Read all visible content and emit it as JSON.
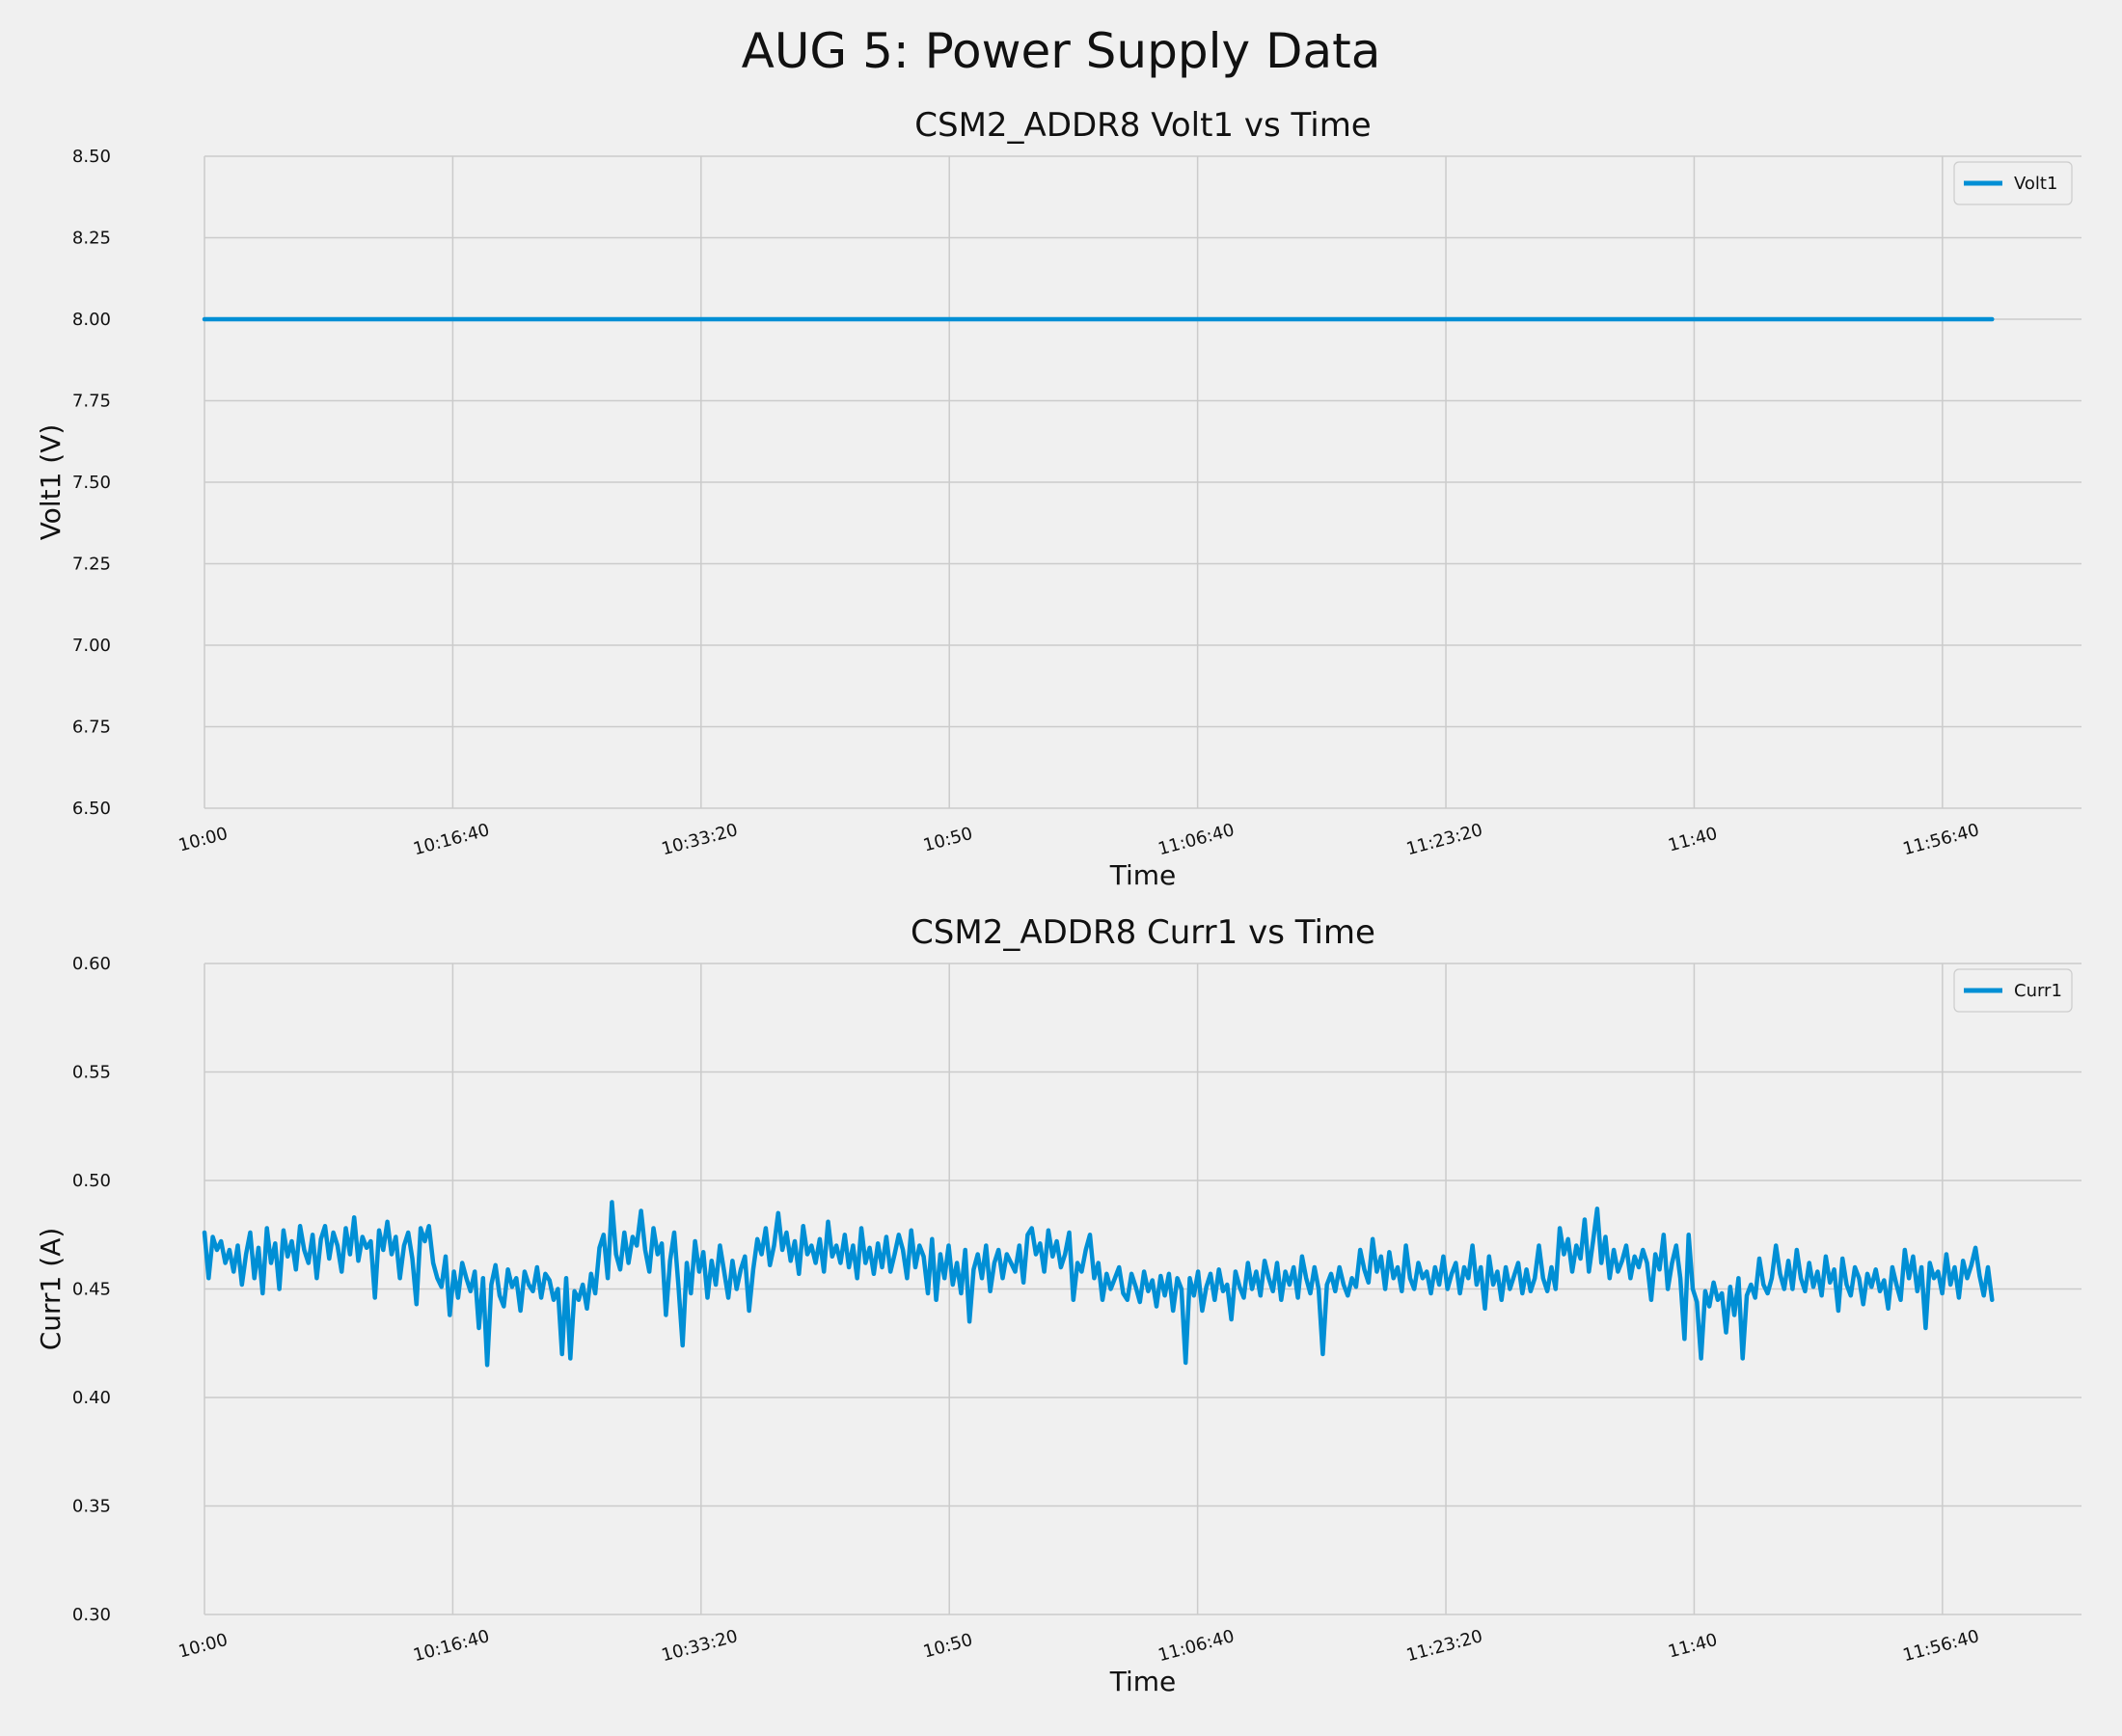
{
  "suptitle": "AUG 5: Power Supply Data",
  "colors": {
    "background": "#f0f0f0",
    "grid": "#cbcbcb",
    "line": "#008fd5",
    "text": "#111111"
  },
  "chart_data": [
    {
      "type": "line",
      "title": "CSM2_ADDR8 Volt1 vs Time",
      "xlabel": "Time",
      "ylabel": "Volt1 (V)",
      "xlim": [
        "10:00:00",
        "12:06:00"
      ],
      "ylim": [
        6.5,
        8.5
      ],
      "x_ticks": [
        "10:00",
        "10:16:40",
        "10:33:20",
        "10:50",
        "11:06:40",
        "11:23:20",
        "11:40",
        "11:56:40"
      ],
      "y_ticks": [
        "6.50",
        "6.75",
        "7.00",
        "7.25",
        "7.50",
        "7.75",
        "8.00",
        "8.25",
        "8.50"
      ],
      "grid": true,
      "legend_position": "top-right",
      "series": [
        {
          "name": "Volt1",
          "x_start": "10:00:00",
          "x_end": "12:00:00",
          "values": [
            8.0,
            8.0
          ]
        }
      ]
    },
    {
      "type": "line",
      "title": "CSM2_ADDR8 Curr1 vs Time",
      "xlabel": "Time",
      "ylabel": "Curr1 (A)",
      "xlim": [
        "10:00:00",
        "12:06:00"
      ],
      "ylim": [
        0.3,
        0.6
      ],
      "x_ticks": [
        "10:00",
        "10:16:40",
        "10:33:20",
        "10:50",
        "11:06:40",
        "11:23:20",
        "11:40",
        "11:56:40"
      ],
      "y_ticks": [
        "0.30",
        "0.35",
        "0.40",
        "0.45",
        "0.50",
        "0.55",
        "0.60"
      ],
      "grid": true,
      "legend_position": "top-right",
      "series": [
        {
          "name": "Curr1",
          "x_start": "10:00:00",
          "x_end": "12:00:00",
          "values": [
            0.476,
            0.455,
            0.474,
            0.468,
            0.472,
            0.462,
            0.468,
            0.458,
            0.47,
            0.452,
            0.466,
            0.476,
            0.455,
            0.469,
            0.448,
            0.478,
            0.462,
            0.471,
            0.45,
            0.477,
            0.465,
            0.472,
            0.459,
            0.479,
            0.468,
            0.462,
            0.475,
            0.455,
            0.473,
            0.479,
            0.464,
            0.476,
            0.47,
            0.458,
            0.478,
            0.466,
            0.483,
            0.463,
            0.474,
            0.469,
            0.472,
            0.446,
            0.477,
            0.468,
            0.481,
            0.466,
            0.474,
            0.455,
            0.47,
            0.476,
            0.464,
            0.443,
            0.478,
            0.472,
            0.479,
            0.462,
            0.455,
            0.451,
            0.465,
            0.438,
            0.458,
            0.446,
            0.462,
            0.455,
            0.449,
            0.458,
            0.432,
            0.455,
            0.415,
            0.452,
            0.461,
            0.447,
            0.442,
            0.459,
            0.451,
            0.455,
            0.44,
            0.458,
            0.452,
            0.449,
            0.46,
            0.446,
            0.457,
            0.454,
            0.445,
            0.45,
            0.42,
            0.455,
            0.418,
            0.449,
            0.445,
            0.452,
            0.441,
            0.457,
            0.448,
            0.469,
            0.475,
            0.455,
            0.49,
            0.466,
            0.459,
            0.476,
            0.462,
            0.474,
            0.47,
            0.486,
            0.468,
            0.458,
            0.478,
            0.466,
            0.471,
            0.438,
            0.463,
            0.476,
            0.452,
            0.424,
            0.462,
            0.448,
            0.472,
            0.458,
            0.467,
            0.446,
            0.463,
            0.452,
            0.47,
            0.458,
            0.446,
            0.463,
            0.45,
            0.459,
            0.465,
            0.44,
            0.459,
            0.473,
            0.466,
            0.478,
            0.461,
            0.47,
            0.485,
            0.468,
            0.476,
            0.463,
            0.472,
            0.457,
            0.479,
            0.466,
            0.47,
            0.462,
            0.473,
            0.458,
            0.481,
            0.465,
            0.47,
            0.462,
            0.475,
            0.46,
            0.47,
            0.455,
            0.478,
            0.462,
            0.469,
            0.457,
            0.471,
            0.46,
            0.474,
            0.458,
            0.466,
            0.475,
            0.468,
            0.455,
            0.477,
            0.46,
            0.47,
            0.465,
            0.448,
            0.473,
            0.445,
            0.466,
            0.455,
            0.47,
            0.452,
            0.462,
            0.448,
            0.468,
            0.435,
            0.459,
            0.466,
            0.455,
            0.47,
            0.449,
            0.462,
            0.468,
            0.455,
            0.466,
            0.462,
            0.458,
            0.47,
            0.453,
            0.475,
            0.478,
            0.466,
            0.471,
            0.458,
            0.477,
            0.465,
            0.472,
            0.46,
            0.466,
            0.476,
            0.445,
            0.462,
            0.458,
            0.468,
            0.475,
            0.455,
            0.462,
            0.445,
            0.457,
            0.45,
            0.455,
            0.46,
            0.448,
            0.445,
            0.457,
            0.451,
            0.444,
            0.458,
            0.449,
            0.454,
            0.442,
            0.456,
            0.447,
            0.457,
            0.44,
            0.455,
            0.45,
            0.416,
            0.455,
            0.447,
            0.458,
            0.44,
            0.451,
            0.457,
            0.445,
            0.459,
            0.449,
            0.452,
            0.436,
            0.458,
            0.451,
            0.446,
            0.462,
            0.45,
            0.458,
            0.447,
            0.463,
            0.455,
            0.449,
            0.462,
            0.445,
            0.458,
            0.452,
            0.46,
            0.446,
            0.465,
            0.455,
            0.448,
            0.46,
            0.45,
            0.42,
            0.452,
            0.457,
            0.449,
            0.46,
            0.452,
            0.447,
            0.455,
            0.451,
            0.468,
            0.459,
            0.453,
            0.473,
            0.458,
            0.465,
            0.45,
            0.467,
            0.455,
            0.46,
            0.449,
            0.47,
            0.455,
            0.45,
            0.462,
            0.455,
            0.458,
            0.448,
            0.46,
            0.452,
            0.465,
            0.45,
            0.457,
            0.462,
            0.448,
            0.46,
            0.455,
            0.47,
            0.452,
            0.46,
            0.441,
            0.465,
            0.452,
            0.458,
            0.445,
            0.46,
            0.45,
            0.456,
            0.462,
            0.448,
            0.459,
            0.449,
            0.455,
            0.47,
            0.455,
            0.449,
            0.46,
            0.45,
            0.478,
            0.466,
            0.473,
            0.458,
            0.47,
            0.464,
            0.482,
            0.458,
            0.472,
            0.487,
            0.462,
            0.474,
            0.455,
            0.468,
            0.458,
            0.463,
            0.47,
            0.455,
            0.465,
            0.46,
            0.468,
            0.462,
            0.445,
            0.466,
            0.459,
            0.475,
            0.45,
            0.462,
            0.47,
            0.455,
            0.427,
            0.475,
            0.45,
            0.444,
            0.418,
            0.449,
            0.442,
            0.453,
            0.445,
            0.448,
            0.43,
            0.451,
            0.438,
            0.455,
            0.418,
            0.447,
            0.452,
            0.446,
            0.464,
            0.452,
            0.448,
            0.455,
            0.47,
            0.457,
            0.45,
            0.463,
            0.45,
            0.468,
            0.455,
            0.449,
            0.462,
            0.451,
            0.458,
            0.447,
            0.465,
            0.453,
            0.459,
            0.44,
            0.464,
            0.452,
            0.447,
            0.46,
            0.455,
            0.443,
            0.457,
            0.451,
            0.459,
            0.449,
            0.454,
            0.441,
            0.46,
            0.452,
            0.445,
            0.468,
            0.455,
            0.465,
            0.449,
            0.46,
            0.432,
            0.462,
            0.455,
            0.458,
            0.448,
            0.466,
            0.452,
            0.46,
            0.446,
            0.463,
            0.455,
            0.461,
            0.469,
            0.456,
            0.447,
            0.46,
            0.445
          ]
        }
      ]
    }
  ]
}
